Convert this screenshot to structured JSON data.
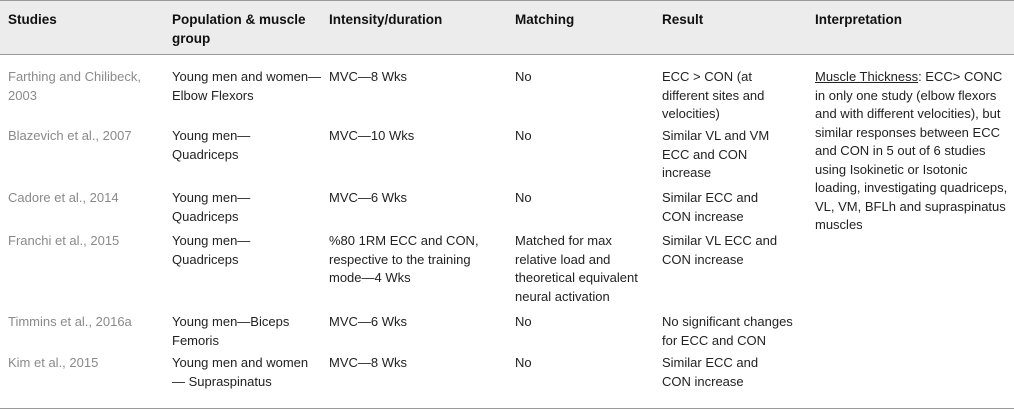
{
  "headers": {
    "studies": "Studies",
    "population": "Population & muscle group",
    "intensity": "Intensity/duration",
    "matching": "Matching",
    "result": "Result",
    "interpretation": "Interpretation"
  },
  "rows": [
    {
      "study": "Farthing and Chilibeck, 2003",
      "population": "Young men and women—Elbow Flexors",
      "intensity": "MVC—8 Wks",
      "matching": "No",
      "result": "ECC > CON (at different sites and velocities)"
    },
    {
      "study": "Blazevich et al., 2007",
      "population": "Young men—Quadriceps",
      "intensity": "MVC—10 Wks",
      "matching": "No",
      "result": "Similar VL and VM ECC and CON increase"
    },
    {
      "study": "Cadore et al., 2014",
      "population": "Young men—Quadriceps",
      "intensity": "MVC—6 Wks",
      "matching": "No",
      "result": "Similar ECC and CON increase"
    },
    {
      "study": "Franchi et al., 2015",
      "population": "Young men—Quadriceps",
      "intensity": "%80 1RM ECC and CON, respective to the training mode—4 Wks",
      "matching": "Matched for max relative load and theoretical equivalent neural activation",
      "result": "Similar VL ECC and CON increase"
    },
    {
      "study": "Timmins et al., 2016a",
      "population": "Young men—Biceps Femoris",
      "intensity": "MVC—6 Wks",
      "matching": "No",
      "result": "No significant changes for ECC and CON"
    },
    {
      "study": "Kim et al., 2015",
      "population": "Young men and women— Supraspinatus",
      "intensity": "MVC—8 Wks",
      "matching": "No",
      "result": "Similar ECC and CON increase"
    }
  ],
  "interpretation": {
    "heading": "Muscle Thickness",
    "body": ": ECC> CONC in only one study (elbow flexors and with different velocities), but similar responses between ECC and CON in 5 out of 6 studies using Isokinetic or Isotonic loading, investigating quadriceps, VL, VM, BFLh and supraspinatus muscles"
  }
}
